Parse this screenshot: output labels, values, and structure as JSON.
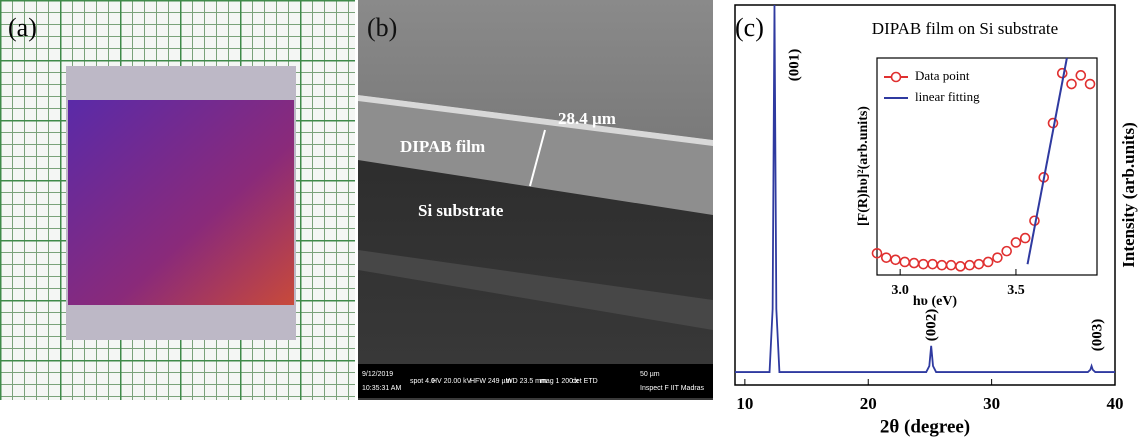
{
  "panels": {
    "a": {
      "label": "(a)"
    },
    "b": {
      "label": "(b)",
      "annotations": [
        "28.4 µm",
        "DIPAB film",
        "Si substrate"
      ],
      "info_bar": [
        "9/12/2019",
        "10:35:31 AM",
        "spot 4.0",
        "HV 20.00 kV",
        "HFW 249 µm",
        "WD 23.5 mm",
        "mag 1 200 x",
        "det ETD",
        "50 µm",
        "Inspect F IIT Madras"
      ]
    },
    "c": {
      "label": "(c)"
    }
  },
  "chart_data": [
    {
      "type": "line",
      "title": "DIPAB film on Si substrate",
      "x_label": "2θ (degree)",
      "y_label": "Intensity (arb.units)",
      "peak_labels": [
        "(001)",
        "(002)",
        "(003)"
      ],
      "xlim": [
        9.2,
        40
      ],
      "xticks": [
        10,
        20,
        30,
        40
      ],
      "ylim": [
        0,
        100
      ],
      "series": [
        {
          "color": "#2f3aa0",
          "x": [
            9.2,
            12.0,
            12.25,
            12.4,
            12.55,
            12.8,
            24.7,
            24.95,
            25.1,
            25.25,
            25.5,
            37.8,
            38.0,
            38.1,
            38.2,
            38.4,
            40
          ],
          "values": [
            3.4,
            3.4,
            20,
            100,
            20,
            3.4,
            3.4,
            5,
            10.3,
            5,
            3.4,
            3.4,
            4,
            5,
            4,
            3.4,
            3.4
          ]
        }
      ]
    },
    {
      "type": "line",
      "x_label": "hυ (eV)",
      "y_label": "[F(R)hυ]²(arb.units)",
      "xlim": [
        2.9,
        3.85
      ],
      "xticks": [
        {
          "value": 3,
          "label": "3.0"
        },
        3.5
      ],
      "ylim": [
        0,
        100
      ],
      "series": [
        {
          "name": "Data point",
          "color": "#e03030",
          "mode": "markers",
          "x": [
            2.9,
            2.94,
            2.98,
            3.02,
            3.06,
            3.1,
            3.14,
            3.18,
            3.22,
            3.26,
            3.3,
            3.34,
            3.38,
            3.42,
            3.46,
            3.5,
            3.54,
            3.58,
            3.62,
            3.66,
            3.7,
            3.74,
            3.78,
            3.82
          ],
          "values": [
            10,
            8,
            7,
            6,
            5.5,
            5,
            5,
            4.5,
            4.5,
            4,
            4.5,
            5,
            6,
            8,
            11,
            15,
            17,
            25,
            45,
            70,
            93,
            88,
            92,
            88
          ]
        },
        {
          "name": "linear fitting",
          "color": "#2f3aa0",
          "mode": "line",
          "x": [
            3.55,
            3.72
          ],
          "values": [
            5,
            100
          ]
        }
      ]
    }
  ]
}
